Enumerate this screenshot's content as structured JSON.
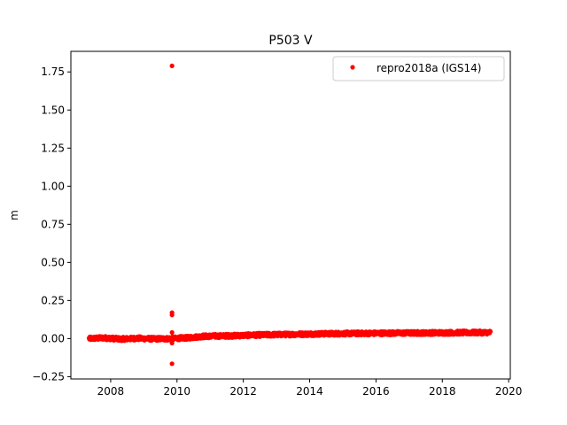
{
  "chart_data": {
    "type": "scatter",
    "title": "P503 V",
    "xlabel": "",
    "ylabel": "m",
    "xlim": [
      2006.8,
      2020.05
    ],
    "ylim": [
      -0.265,
      1.885
    ],
    "xticks": [
      2008,
      2010,
      2012,
      2014,
      2016,
      2018,
      2020
    ],
    "xtick_labels": [
      "2008",
      "2010",
      "2012",
      "2014",
      "2016",
      "2018",
      "2020"
    ],
    "yticks": [
      -0.25,
      0.0,
      0.25,
      0.5,
      0.75,
      1.0,
      1.25,
      1.5,
      1.75
    ],
    "ytick_labels": [
      "−0.25",
      "0.00",
      "0.25",
      "0.50",
      "0.75",
      "1.00",
      "1.25",
      "1.50",
      "1.75"
    ],
    "grid": false,
    "legend_position": "top-right",
    "series": [
      {
        "name": "repro2018a (IGS14)",
        "color": "#ff0000",
        "marker": "circle",
        "trend": [
          [
            2007.35,
            0.0
          ],
          [
            2007.8,
            0.005
          ],
          [
            2008.3,
            -0.003
          ],
          [
            2008.8,
            0.002
          ],
          [
            2009.3,
            -0.002
          ],
          [
            2009.8,
            0.0
          ],
          [
            2010.3,
            0.005
          ],
          [
            2010.8,
            0.015
          ],
          [
            2011.5,
            0.018
          ],
          [
            2012.5,
            0.024
          ],
          [
            2013.5,
            0.028
          ],
          [
            2014.5,
            0.032
          ],
          [
            2015.5,
            0.034
          ],
          [
            2016.5,
            0.036
          ],
          [
            2017.5,
            0.037
          ],
          [
            2018.5,
            0.039
          ],
          [
            2019.45,
            0.04
          ]
        ],
        "x_range": [
          2007.35,
          2019.45
        ],
        "spread": 0.012,
        "outliers": [
          {
            "x": 2009.85,
            "y": 1.79
          },
          {
            "x": 2009.85,
            "y": 0.17
          },
          {
            "x": 2009.85,
            "y": 0.155
          },
          {
            "x": 2009.85,
            "y": -0.165
          },
          {
            "x": 2009.85,
            "y": 0.04
          },
          {
            "x": 2009.85,
            "y": -0.03
          }
        ]
      }
    ]
  }
}
